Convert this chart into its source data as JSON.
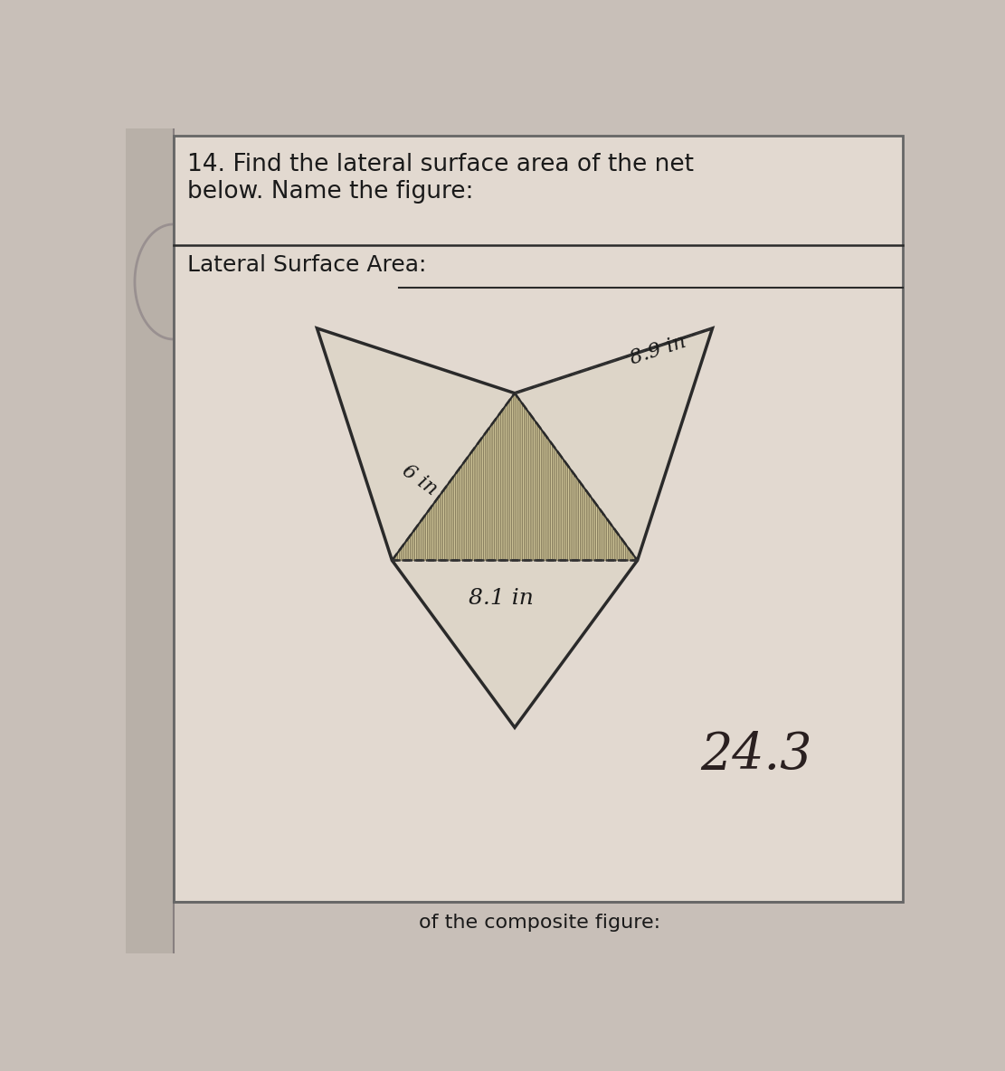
{
  "title_text": "14. Find the lateral surface area of the net\nbelow. Name the figure:",
  "label_line1": "Lateral Surface Area:",
  "bg_color": "#c8bfb8",
  "paper_color": "#e2d9d0",
  "triangle_fill": "#ddd5c8",
  "shaded_fill": "#d6cc9e",
  "dim_6in": "6 in",
  "dim_8p1in": "8.1 in",
  "dim_8p9in": "8.9 in",
  "answer_text": "24.3",
  "answer_fontsize": 40,
  "title_fontsize": 19,
  "label_fontsize": 18,
  "dim_fontsize": 15,
  "box_border_color": "#666666",
  "line_color": "#2a2a2a",
  "dashed_color": "#333333",
  "sidebar_color": "#b8b0a8"
}
